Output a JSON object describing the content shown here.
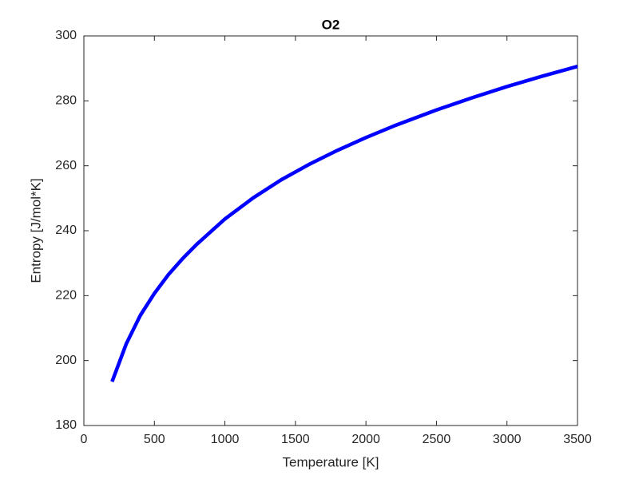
{
  "chart_data": {
    "type": "line",
    "title": "O2",
    "x_label": "Temperature [K]",
    "y_label": "Entropy [J/mol*K]",
    "x": [
      200,
      300,
      400,
      500,
      600,
      700,
      800,
      900,
      1000,
      1200,
      1400,
      1600,
      1800,
      2000,
      2200,
      2500,
      2750,
      3000,
      3250,
      3500
    ],
    "series": [
      {
        "name": "O2",
        "color": "#0000ff",
        "values": [
          193.5,
          205.1,
          213.9,
          220.7,
          226.5,
          231.4,
          235.8,
          239.7,
          243.6,
          250.1,
          255.7,
          260.5,
          264.8,
          268.7,
          272.3,
          277.2,
          280.9,
          284.4,
          287.6,
          290.6
        ]
      }
    ],
    "xlim": [
      0,
      3500
    ],
    "xticks": [
      0,
      500,
      1000,
      1500,
      2000,
      2500,
      3000,
      3500
    ],
    "ylim": [
      180,
      300
    ],
    "yticks": [
      180,
      200,
      220,
      240,
      260,
      280,
      300
    ],
    "grid": false
  }
}
